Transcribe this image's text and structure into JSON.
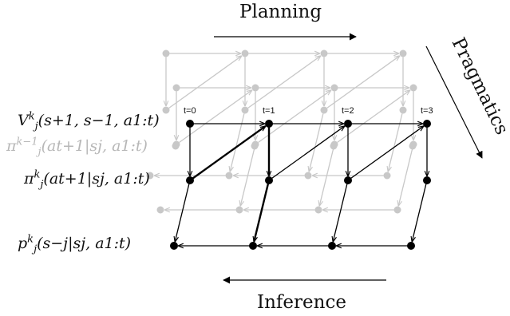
{
  "titles": {
    "planning": "Planning",
    "inference": "Inference",
    "pragmatics": "Pragmatics"
  },
  "time_labels": [
    "t=0",
    "t=1",
    "t=2",
    "t=3"
  ],
  "row_labels": {
    "value": {
      "sym": "V",
      "sub": "j",
      "sup": "k",
      "args": "(s+1, s−1, a1:t)"
    },
    "prev_policy": {
      "sym": "π",
      "sub": "j",
      "sup": "k−1",
      "args": "(at+1|sj, a1:t)"
    },
    "policy": {
      "sym": "π",
      "sub": "j",
      "sup": "k",
      "args": "(at+1|sj, a1:t)"
    },
    "belief": {
      "sym": "p",
      "sub": "j",
      "sup": "k",
      "args": "(s−j|sj, a1:t)"
    }
  },
  "colors": {
    "front": "#000000",
    "back": "#c8c8c8",
    "text_grey": "#b7b7b7"
  }
}
